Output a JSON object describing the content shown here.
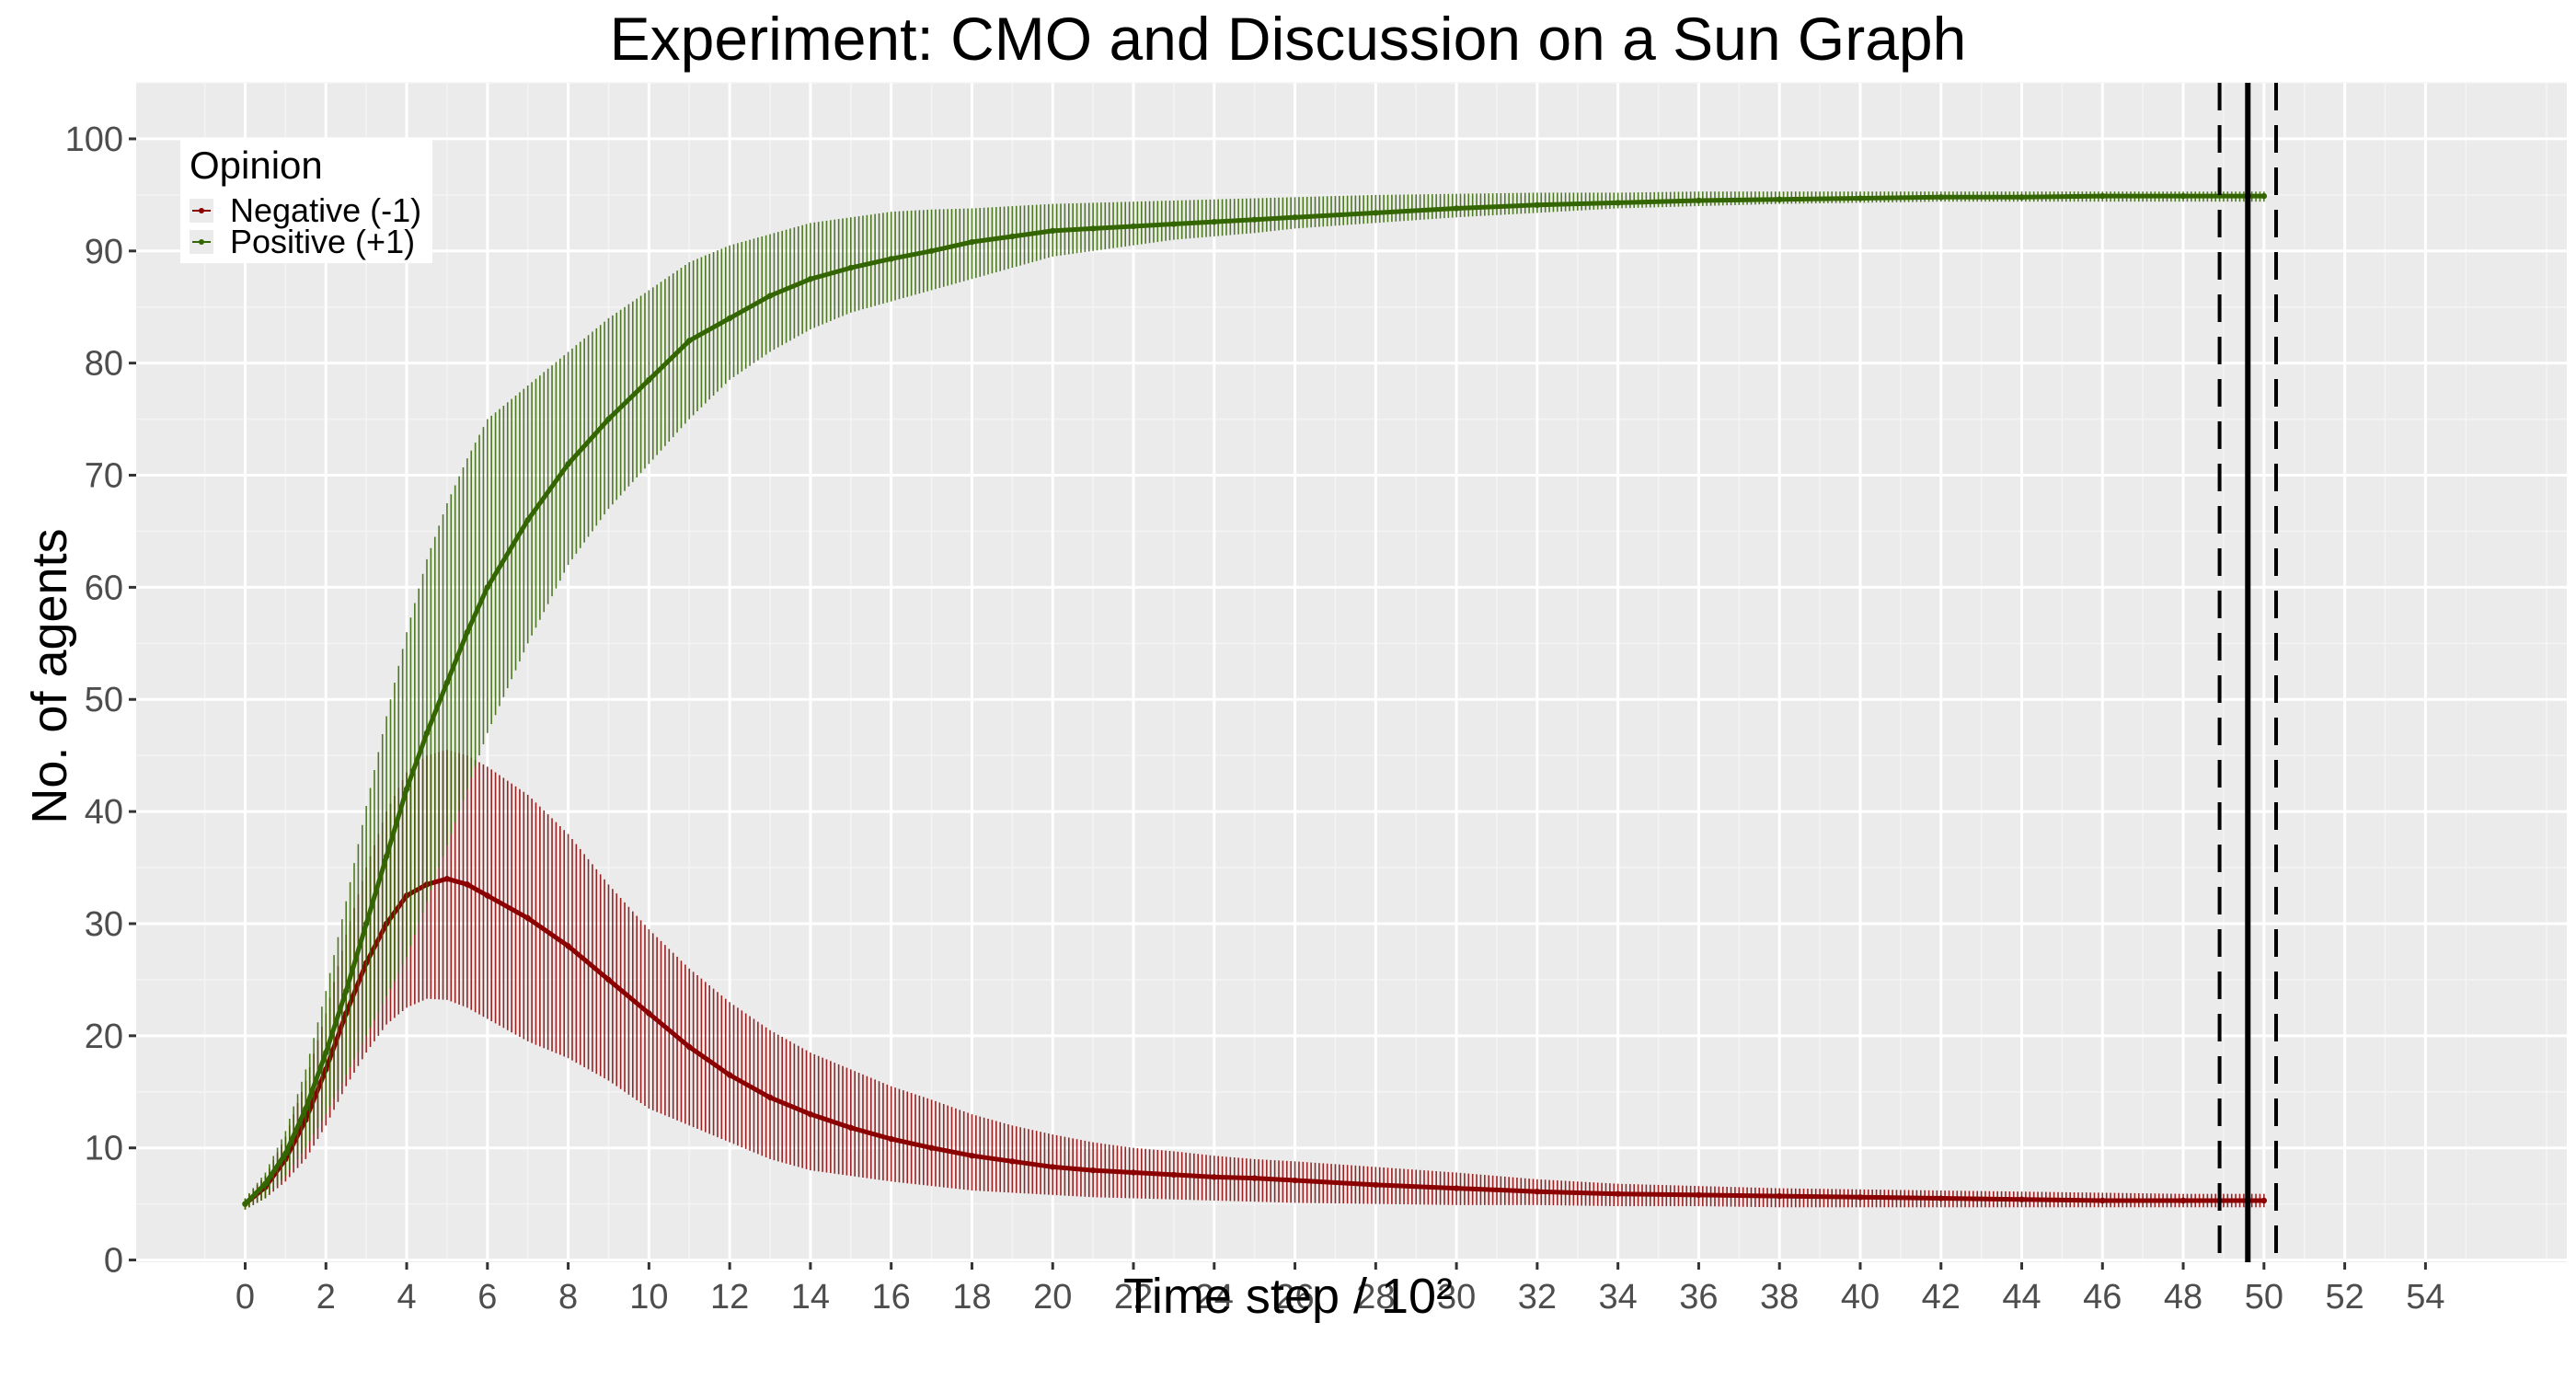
{
  "chart_data": {
    "type": "line",
    "title": "Experiment: CMO and Discussion on a Sun Graph",
    "xlabel": "Time step / 10²",
    "ylabel": "No. of agents",
    "xlim": [
      -2.7,
      57.5
    ],
    "ylim": [
      -0.2,
      105
    ],
    "x_ticks": [
      "0",
      "2",
      "4",
      "6",
      "8",
      "10",
      "12",
      "14",
      "16",
      "18",
      "20",
      "22",
      "24",
      "26",
      "28",
      "30",
      "32",
      "34",
      "36",
      "38",
      "40",
      "42",
      "44",
      "46",
      "48",
      "50",
      "52",
      "54"
    ],
    "y_ticks": [
      "0",
      "10",
      "20",
      "30",
      "40",
      "50",
      "60",
      "70",
      "80",
      "90",
      "100"
    ],
    "grid": true,
    "legend": {
      "title": "Opinion",
      "position": "top-left",
      "entries": [
        "Negative (-1)",
        "Positive (+1)"
      ]
    },
    "series": [
      {
        "name": "Negative (-1)",
        "color": "#8b0000",
        "x": [
          0,
          0.5,
          1,
          1.5,
          2,
          2.5,
          3,
          3.5,
          4,
          4.5,
          5,
          5.5,
          6,
          7,
          8,
          9,
          10,
          11,
          12,
          13,
          14,
          15,
          16,
          17,
          18,
          19,
          20,
          21,
          22,
          23,
          24,
          25,
          26,
          28,
          30,
          32,
          34,
          36,
          38,
          40,
          42,
          44,
          46,
          48,
          50
        ],
        "mean": [
          5,
          6.5,
          9,
          12.5,
          17,
          22,
          26.5,
          30,
          32.5,
          33.5,
          34,
          33.5,
          32.5,
          30.5,
          28,
          25,
          22,
          19,
          16.5,
          14.5,
          13,
          11.8,
          10.8,
          10,
          9.3,
          8.8,
          8.3,
          8,
          7.8,
          7.6,
          7.4,
          7.3,
          7.1,
          6.7,
          6.4,
          6.1,
          5.9,
          5.8,
          5.7,
          5.6,
          5.5,
          5.4,
          5.3,
          5.3,
          5.3
        ],
        "upper": [
          5.5,
          7.5,
          11,
          16,
          22,
          29,
          35,
          40,
          43.5,
          45,
          45.5,
          45,
          44,
          41.5,
          38,
          33.5,
          29.5,
          26,
          23,
          20.5,
          18.5,
          17,
          15.5,
          14.3,
          13,
          12,
          11.2,
          10.5,
          10,
          9.7,
          9.3,
          9,
          8.8,
          8.3,
          7.8,
          7.2,
          6.8,
          6.6,
          6.4,
          6.3,
          6.2,
          6.1,
          6,
          5.9,
          5.9
        ],
        "lower": [
          4.5,
          5.5,
          7,
          9,
          12,
          15.5,
          18.5,
          21,
          22.5,
          23.3,
          23.2,
          22.5,
          21.5,
          19.5,
          18,
          16,
          13.5,
          12,
          10.5,
          9,
          8,
          7.5,
          7,
          6.6,
          6.2,
          6,
          5.8,
          5.6,
          5.5,
          5.4,
          5.3,
          5.2,
          5.1,
          5,
          4.9,
          4.9,
          4.8,
          4.8,
          4.7,
          4.7,
          4.7,
          4.7,
          4.7,
          4.7,
          4.7
        ]
      },
      {
        "name": "Positive (+1)",
        "color": "#336600",
        "x": [
          0,
          0.5,
          1,
          1.5,
          2,
          2.5,
          3,
          3.5,
          4,
          4.5,
          5,
          5.5,
          6,
          7,
          8,
          9,
          10,
          11,
          12,
          13,
          14,
          15,
          16,
          17,
          18,
          19,
          20,
          21,
          22,
          23,
          24,
          25,
          26,
          28,
          30,
          32,
          34,
          36,
          38,
          40,
          42,
          44,
          46,
          48,
          50
        ],
        "mean": [
          5,
          6.8,
          9.5,
          13.5,
          18.5,
          24,
          30,
          36,
          42,
          47,
          51.5,
          56,
          60,
          66,
          71,
          75,
          78.5,
          82,
          84,
          86,
          87.5,
          88.5,
          89.3,
          90,
          90.8,
          91.3,
          91.8,
          92,
          92.2,
          92.4,
          92.6,
          92.8,
          93,
          93.4,
          93.8,
          94.1,
          94.3,
          94.5,
          94.6,
          94.7,
          94.8,
          94.8,
          94.9,
          94.9,
          94.9
        ],
        "upper": [
          5.5,
          7.8,
          11.5,
          17,
          24,
          32,
          40.5,
          48.5,
          56,
          62.5,
          67.5,
          71.5,
          75,
          78,
          81,
          84,
          86.5,
          89,
          90.5,
          91.5,
          92.5,
          93,
          93.5,
          93.7,
          93.8,
          94,
          94.2,
          94.3,
          94.4,
          94.5,
          94.6,
          94.7,
          94.8,
          95,
          95.1,
          95.2,
          95.2,
          95.3,
          95.3,
          95.3,
          95.3,
          95.3,
          95.3,
          95.3,
          95.3
        ],
        "lower": [
          4.5,
          5.5,
          7.5,
          10,
          13,
          16.5,
          20,
          23.5,
          27,
          32,
          37,
          42,
          47,
          55,
          62,
          67,
          71,
          75,
          78.5,
          81,
          83,
          84.5,
          85.5,
          86.5,
          87.5,
          88.5,
          89.5,
          90,
          90.5,
          91,
          91.3,
          91.6,
          92,
          92.5,
          93,
          93.4,
          93.8,
          94,
          94.2,
          94.3,
          94.4,
          94.4,
          94.4,
          94.4,
          94.4
        ]
      }
    ],
    "vlines": [
      {
        "x": 49.6,
        "style": "solid"
      },
      {
        "x": 48.9,
        "style": "dashed"
      },
      {
        "x": 50.3,
        "style": "dashed"
      }
    ]
  }
}
